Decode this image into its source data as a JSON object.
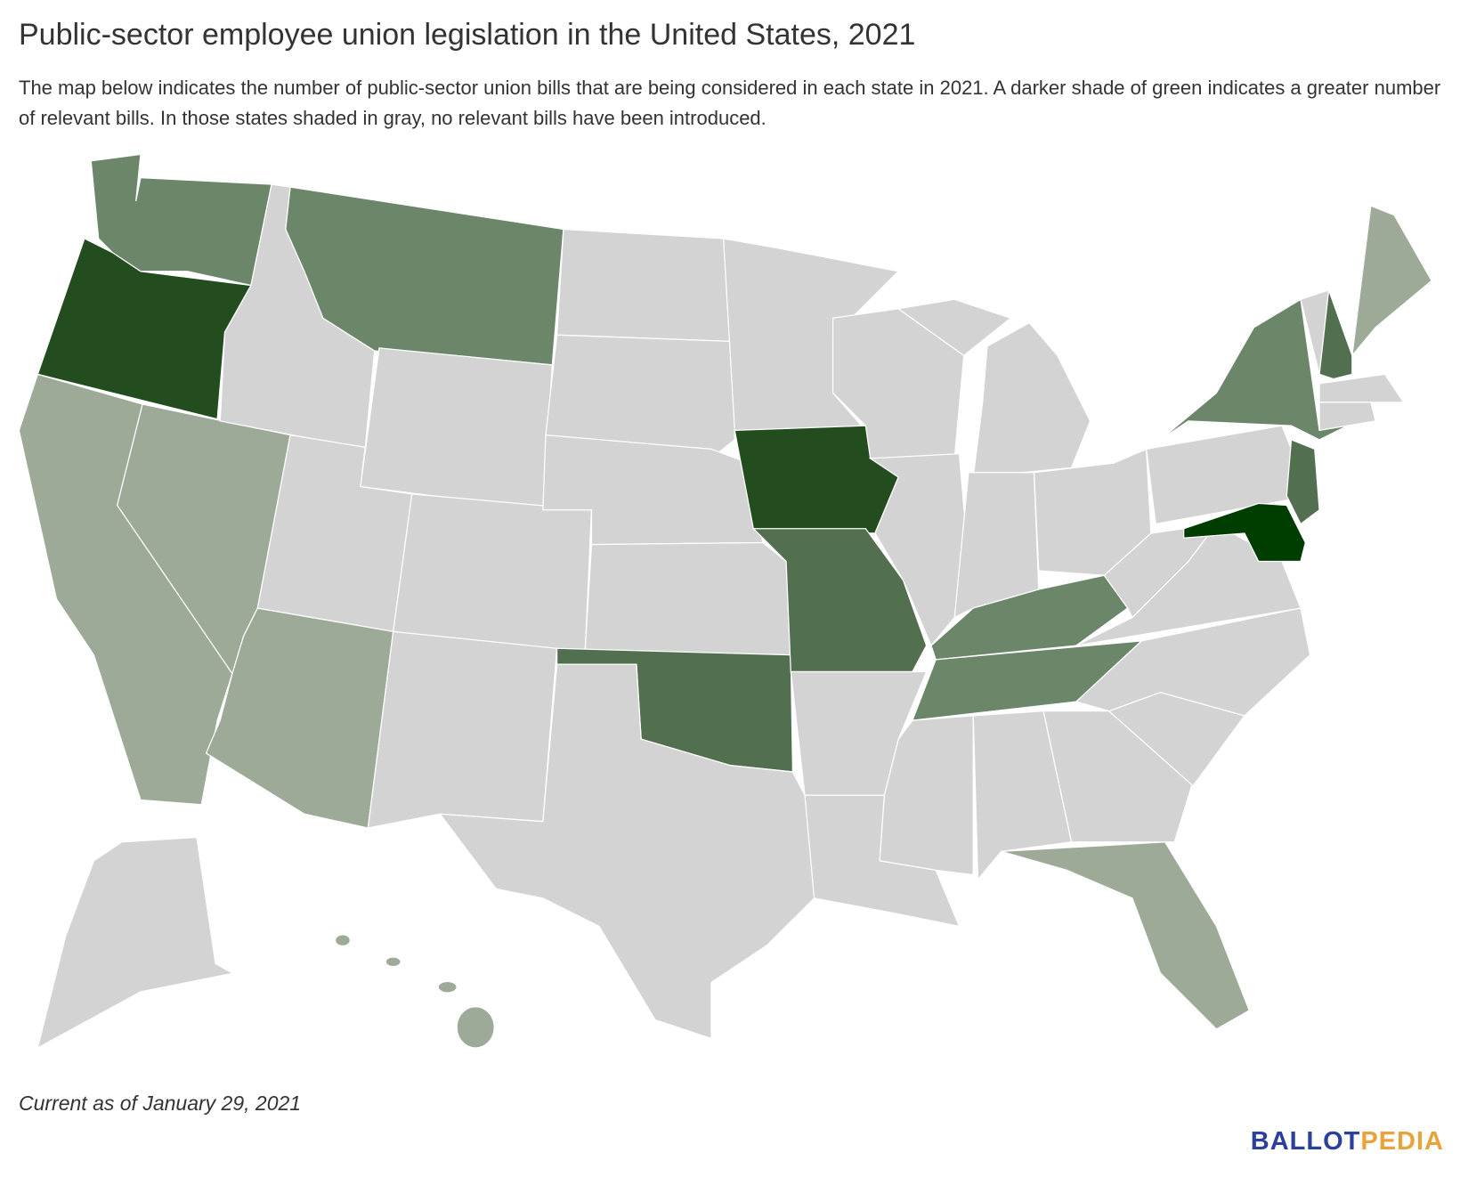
{
  "title": "Public-sector employee union legislation in the United States, 2021",
  "description": "The map below indicates the number of public-sector union bills that are being considered in each state in 2021. A darker shade of green indicates a greater number of relevant bills. In those states shaded in gray, no relevant bills have been introduced.",
  "footnote": "Current as of January 29, 2021",
  "logo": {
    "first": "BALLOT",
    "second": "PEDIA"
  }
}
